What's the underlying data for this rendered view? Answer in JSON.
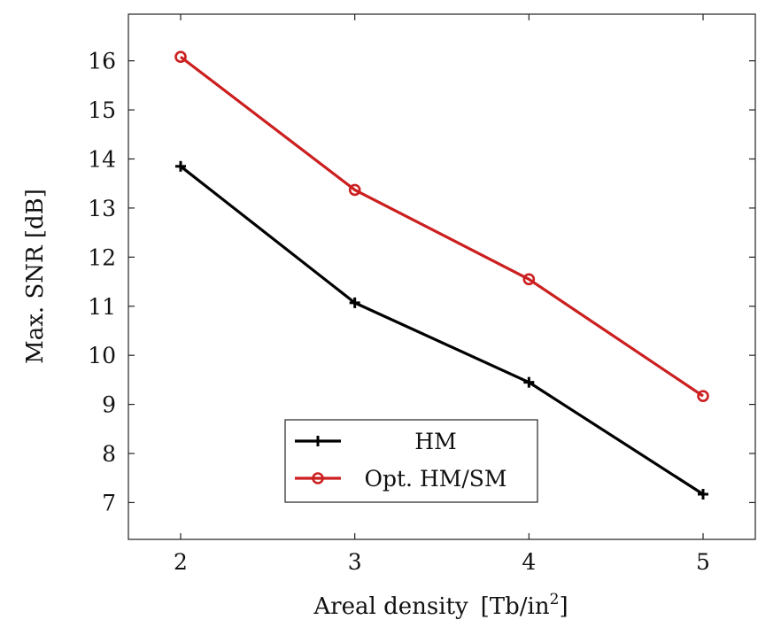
{
  "chart_data": {
    "type": "line",
    "x": [
      2,
      3,
      4,
      5
    ],
    "xlabel": "Areal density",
    "xlabel_unit_prefix": "[Tb/in",
    "xlabel_unit_exp": "2",
    "xlabel_unit_suffix": "]",
    "ylabel": "Max. SNR [dB]",
    "xlim": [
      1.7,
      5.3
    ],
    "ylim": [
      6.25,
      16.95
    ],
    "xticks": [
      2,
      3,
      4,
      5
    ],
    "yticks": [
      7,
      8,
      9,
      10,
      11,
      12,
      13,
      14,
      15,
      16
    ],
    "grid": false,
    "legend_position": "bottom-center",
    "series": [
      {
        "name": "HM",
        "values": [
          13.85,
          11.07,
          9.45,
          7.17
        ],
        "color": "#000000",
        "marker": "plus"
      },
      {
        "name": "Opt. HM/SM",
        "values": [
          16.08,
          13.37,
          11.55,
          9.17
        ],
        "color": "#cc1f1f",
        "marker": "circle"
      }
    ]
  }
}
